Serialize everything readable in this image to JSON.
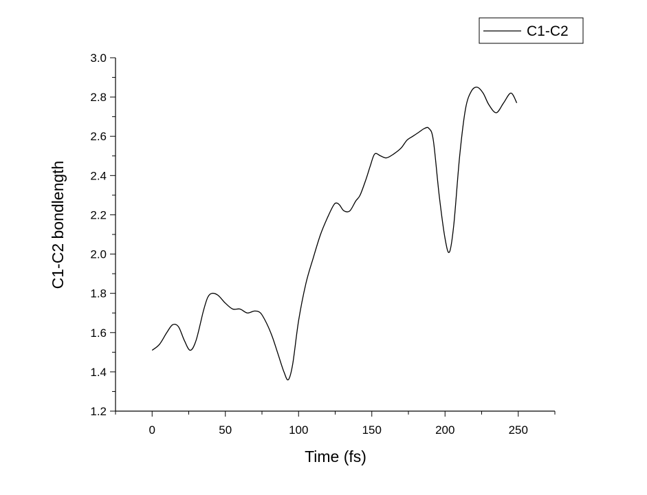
{
  "chart_data": {
    "type": "line",
    "title": "",
    "xlabel": "Time (fs)",
    "ylabel": "C1-C2 bondlength",
    "xlim": [
      -25,
      275
    ],
    "ylim": [
      1.2,
      3.0
    ],
    "x_ticks": [
      0,
      50,
      100,
      150,
      200,
      250
    ],
    "x_tick_labels": [
      "0",
      "50",
      "100",
      "150",
      "200",
      "250"
    ],
    "y_ticks": [
      1.2,
      1.4,
      1.6,
      1.8,
      2.0,
      2.2,
      2.4,
      2.6,
      2.8,
      3.0
    ],
    "y_tick_labels": [
      "1.2",
      "1.4",
      "1.6",
      "1.8",
      "2.0",
      "2.2",
      "2.4",
      "2.6",
      "2.8",
      "3.0"
    ],
    "grid": false,
    "legend_position": "top-right",
    "series": [
      {
        "name": "C1-C2",
        "color": "#000000",
        "x": [
          0,
          5,
          10,
          14,
          18,
          22,
          26,
          30,
          35,
          38,
          41,
          45,
          50,
          55,
          60,
          65,
          70,
          74,
          78,
          82,
          86,
          90,
          93,
          96,
          100,
          105,
          110,
          115,
          120,
          124,
          126,
          128,
          131,
          135,
          139,
          142,
          146,
          149,
          152,
          156,
          160,
          165,
          170,
          174,
          178,
          182,
          186,
          189,
          192,
          196,
          200,
          203,
          206,
          210,
          214,
          218,
          222,
          226,
          230,
          235,
          240,
          245,
          249
        ],
        "y": [
          1.51,
          1.54,
          1.6,
          1.64,
          1.63,
          1.56,
          1.51,
          1.56,
          1.71,
          1.78,
          1.8,
          1.79,
          1.75,
          1.72,
          1.72,
          1.7,
          1.71,
          1.7,
          1.65,
          1.58,
          1.49,
          1.4,
          1.36,
          1.44,
          1.66,
          1.85,
          1.98,
          2.1,
          2.19,
          2.25,
          2.26,
          2.25,
          2.22,
          2.22,
          2.27,
          2.3,
          2.38,
          2.45,
          2.51,
          2.5,
          2.49,
          2.51,
          2.54,
          2.58,
          2.6,
          2.62,
          2.64,
          2.64,
          2.58,
          2.3,
          2.08,
          2.01,
          2.15,
          2.5,
          2.74,
          2.83,
          2.85,
          2.82,
          2.76,
          2.72,
          2.77,
          2.82,
          2.77
        ]
      }
    ]
  }
}
